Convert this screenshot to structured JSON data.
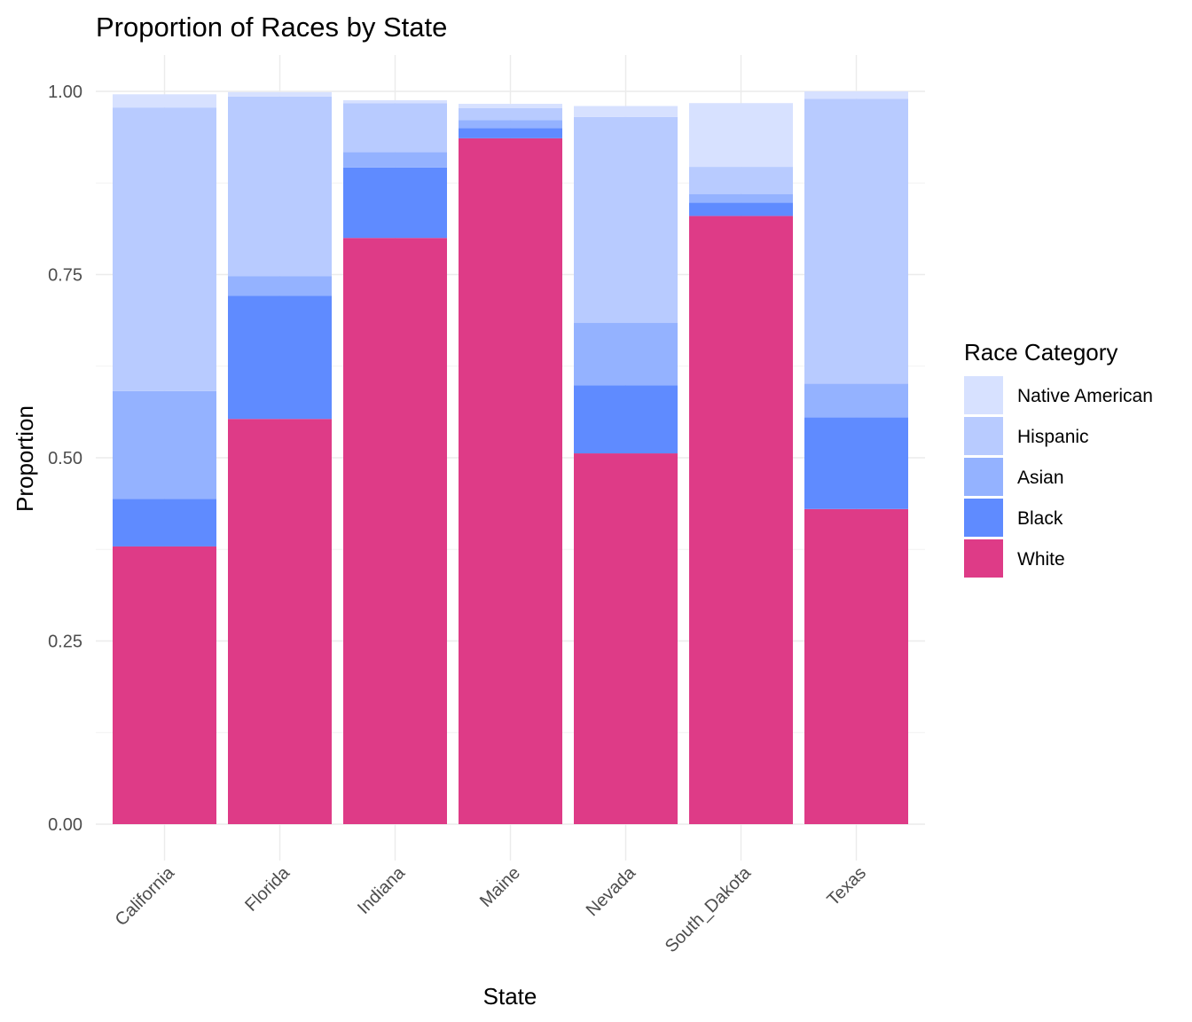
{
  "chart_data": {
    "type": "bar",
    "stacked": true,
    "title": "Proportion of Races by State",
    "xlabel": "State",
    "ylabel": "Proportion",
    "ylim": [
      0,
      1.0
    ],
    "yticks": [
      0.0,
      0.25,
      0.5,
      0.75,
      1.0
    ],
    "ytick_labels": [
      "0.00",
      "0.25",
      "0.50",
      "0.75",
      "1.00"
    ],
    "categories": [
      "California",
      "Florida",
      "Indiana",
      "Maine",
      "Nevada",
      "South_Dakota",
      "Texas"
    ],
    "series": [
      {
        "name": "White",
        "color": "#DE3B87",
        "values": [
          0.379,
          0.553,
          0.8,
          0.936,
          0.506,
          0.83,
          0.43
        ]
      },
      {
        "name": "Black",
        "color": "#5F8BFF",
        "values": [
          0.065,
          0.168,
          0.096,
          0.014,
          0.093,
          0.018,
          0.125
        ]
      },
      {
        "name": "Asian",
        "color": "#94B2FF",
        "values": [
          0.147,
          0.027,
          0.021,
          0.011,
          0.085,
          0.012,
          0.046
        ]
      },
      {
        "name": "Hispanic",
        "color": "#B8CBFF",
        "values": [
          0.387,
          0.245,
          0.067,
          0.016,
          0.281,
          0.037,
          0.389
        ]
      },
      {
        "name": "Native American",
        "color": "#D7E1FF",
        "values": [
          0.018,
          0.006,
          0.004,
          0.006,
          0.015,
          0.087,
          0.01
        ]
      }
    ],
    "legend": {
      "title": "Race Category",
      "entries": [
        "Native American",
        "Hispanic",
        "Asian",
        "Black",
        "White"
      ],
      "position": "right"
    },
    "grid": true
  }
}
